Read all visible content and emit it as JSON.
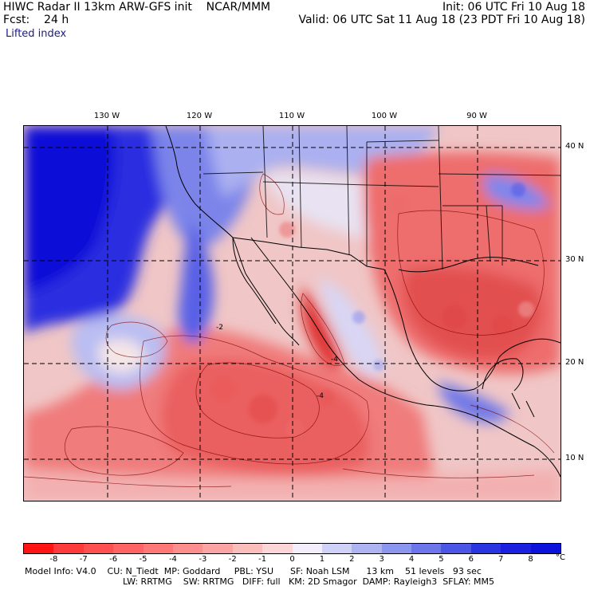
{
  "header": {
    "line1_left": "HIWC Radar II 13km ARW-GFS init    NCAR/MMM",
    "line1_right": "Init: 06 UTC Fri 10 Aug 18",
    "line2_left": "Fcst:    24 h",
    "line2_right": "Valid: 06 UTC Sat 11 Aug 18 (23 PDT Fri 10 Aug 18)",
    "field_label": "Lifted index"
  },
  "map": {
    "longitude_labels": [
      "130 W",
      "120 W",
      "110 W",
      "100 W",
      "90 W"
    ],
    "latitude_labels": [
      "40 N",
      "30 N",
      "20 N",
      "10 N"
    ],
    "region": "Eastern Pacific, Mexico and southern United States",
    "contour_labels": [
      "-2",
      "-4",
      "-4"
    ]
  },
  "colorbar": {
    "labels": [
      "-8",
      "-7",
      "-6",
      "-5",
      "-4",
      "-3",
      "-2",
      "-1",
      "0",
      "1",
      "2",
      "3",
      "4",
      "5",
      "6",
      "7",
      "8"
    ],
    "unit": "°C",
    "colors": [
      "#ff1414",
      "#ff3a3a",
      "#ff5050",
      "#ff6363",
      "#ff7878",
      "#fd8e8e",
      "#fca3a3",
      "#fbbcbc",
      "#fcd6d6",
      "#f2eefc",
      "#cfd2f6",
      "#aeb3f1",
      "#8d96ee",
      "#6c75ea",
      "#4b55e6",
      "#2a35e2",
      "#1a1fe0",
      "#0a12dc"
    ]
  },
  "model_info": {
    "line1": "Model Info: V4.0    CU: N_Tiedt  MP: Goddard     PBL: YSU      SF: Noah LSM      13 km    51 levels   93 sec",
    "line2": "LW: RRTMG    SW: RRTMG   DIFF: full   KM: 2D Smagor  DAMP: Rayleigh3  SFLAY: MM5"
  }
}
